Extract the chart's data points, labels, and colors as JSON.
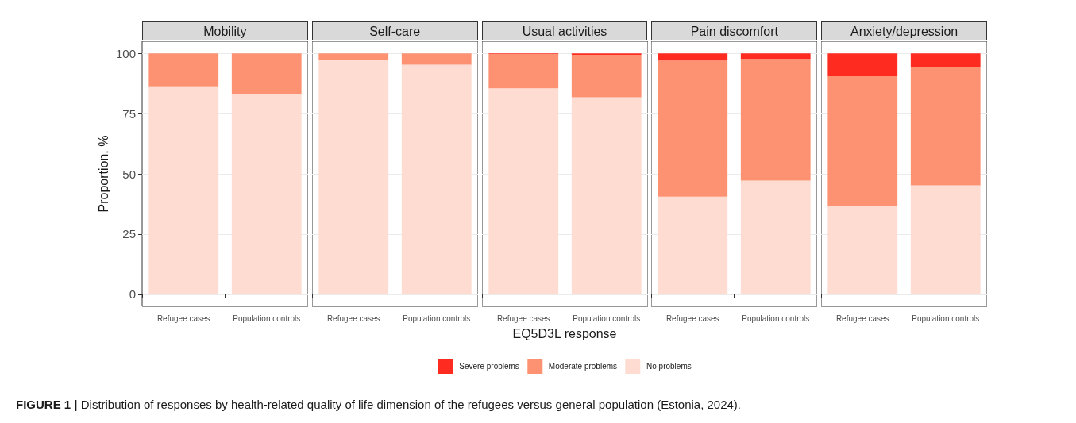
{
  "chart_data": [
    {
      "type": "bar",
      "title": "Mobility",
      "ylabel": "Proportion, %",
      "categories": [
        "Refugee cases",
        "Population controls"
      ],
      "stacked": true,
      "ylim": [
        -5,
        105
      ],
      "yticks": [
        0,
        25,
        50,
        75,
        100
      ],
      "grid": true,
      "legend": "bottom",
      "series": [
        {
          "name": "No problems",
          "color": "#fedcd2",
          "values": [
            86.3,
            83.2
          ]
        },
        {
          "name": "Moderate problems",
          "color": "#fc9272",
          "values": [
            13.7,
            16.8
          ]
        },
        {
          "name": "Severe problems",
          "color": "#fe2c20",
          "values": [
            0,
            0
          ]
        }
      ]
    },
    {
      "type": "bar",
      "title": "Self-care",
      "categories": [
        "Refugee cases",
        "Population controls"
      ],
      "stacked": true,
      "ylim": [
        -5,
        105
      ],
      "yticks": [
        0,
        25,
        50,
        75,
        100
      ],
      "grid": true,
      "tick_labels": "x",
      "series": [
        {
          "color": "#fedcd2",
          "values": [
            97.3,
            95.3
          ]
        },
        {
          "color": "#fc9272",
          "values": [
            2.7,
            4.7
          ]
        },
        {
          "color": "#fe2c20",
          "values": [
            0,
            0
          ]
        }
      ]
    },
    {
      "type": "bar",
      "title": "Usual activities",
      "xlabel": "EQ5D3L response",
      "categories": [
        "Refugee cases",
        "Population controls"
      ],
      "stacked": true,
      "ylim": [
        -5,
        105
      ],
      "yticks": [
        0,
        25,
        50,
        75,
        100
      ],
      "grid": true,
      "tick_labels": "x",
      "annotations": [
        "FIGURE 1 | Distribution of responses by health-related quality of life dimension of the refugees versus general population (Estonia, 2024)."
      ],
      "series": [
        {
          "color": "#fedcd2",
          "values": [
            85.5,
            81.8
          ]
        },
        {
          "color": "#fc9272",
          "values": [
            14.2,
            17.6
          ]
        },
        {
          "color": "#fe2c20",
          "values": [
            0.3,
            0.6
          ]
        }
      ]
    },
    {
      "type": "bar",
      "title": "Pain discomfort",
      "categories": [
        "Refugee cases",
        "Population controls"
      ],
      "stacked": true,
      "ylim": [
        -5,
        105
      ],
      "yticks": [
        0,
        25,
        50,
        75,
        100
      ],
      "grid": true,
      "tick_labels": "x",
      "series": [
        {
          "color": "#fedcd2",
          "values": [
            40.5,
            47.2
          ]
        },
        {
          "color": "#fc9272",
          "values": [
            56.5,
            50.5
          ]
        },
        {
          "color": "#fe2c20",
          "values": [
            3.0,
            2.3
          ]
        }
      ]
    },
    {
      "type": "bar",
      "title": "Anxiety/depression",
      "categories": [
        "Refugee cases",
        "Population controls"
      ],
      "stacked": true,
      "ylim": [
        -5,
        105
      ],
      "yticks": [
        0,
        25,
        50,
        75,
        100
      ],
      "grid": true,
      "tick_labels": "x",
      "series": [
        {
          "color": "#fedcd2",
          "values": [
            36.6,
            45.2
          ]
        },
        {
          "color": "#fc9272",
          "values": [
            53.9,
            49.0
          ]
        },
        {
          "color": "#fe2c20",
          "values": [
            9.5,
            5.8
          ]
        }
      ]
    }
  ]
}
